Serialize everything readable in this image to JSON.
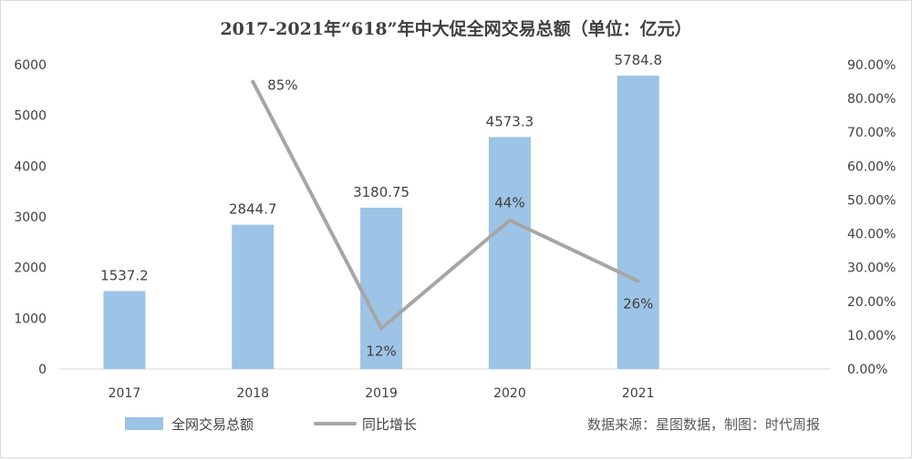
{
  "chart_data": {
    "type": "bar",
    "title": "2017-2021年“618”年中大促全网交易总额（单位：亿元）",
    "categories": [
      "2017",
      "2018",
      "2019",
      "2020",
      "2021"
    ],
    "series": [
      {
        "name": "全网交易总额",
        "type": "bar",
        "axis": "left",
        "values": [
          1537.2,
          2844.7,
          3180.75,
          4573.3,
          5784.8
        ],
        "labels": [
          "1537.2",
          "2844.7",
          "3180.75",
          "4573.3",
          "5784.8"
        ],
        "color": "#9dc3e6"
      },
      {
        "name": "同比增长",
        "type": "line",
        "axis": "right",
        "values": [
          null,
          85,
          12,
          44,
          26
        ],
        "labels": [
          null,
          "85%",
          "12%",
          "44%",
          "26%"
        ],
        "color": "#a6a6a6"
      }
    ],
    "y_left": {
      "ylim": [
        0,
        6000
      ],
      "ticks": [
        "0",
        "1000",
        "2000",
        "3000",
        "4000",
        "5000",
        "6000"
      ]
    },
    "y_right": {
      "ylim": [
        0,
        90
      ],
      "ticks": [
        "0.00%",
        "10.00%",
        "20.00%",
        "30.00%",
        "40.00%",
        "50.00%",
        "60.00%",
        "70.00%",
        "80.00%",
        "90.00%"
      ]
    },
    "grid": false,
    "legend": "bottom-left"
  },
  "source_note": "数据来源：星图数据，制图：时代周报"
}
